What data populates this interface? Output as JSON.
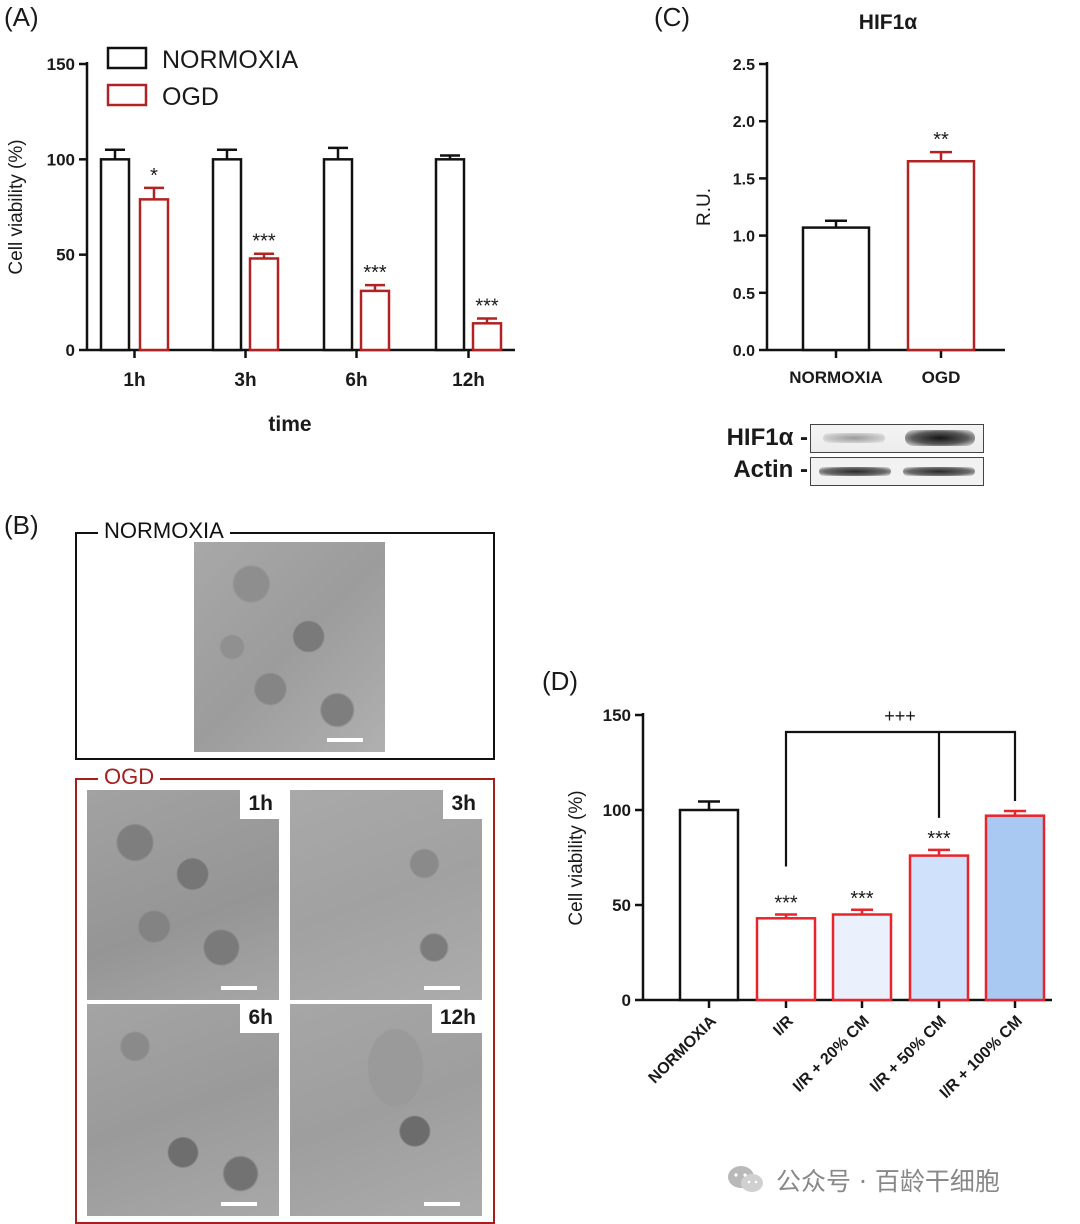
{
  "panel_labels": {
    "a": "(A)",
    "b": "(B)",
    "c": "(C)",
    "d": "(D)"
  },
  "colors": {
    "normoxia": "#111111",
    "ogd": "#b22222",
    "ir": "#e8252a",
    "cm20": "#eaf1fc",
    "cm50": "#d0e2fb",
    "cm100": "#a9c9f3"
  },
  "chart_data": [
    {
      "id": "A",
      "type": "bar",
      "categories": [
        "1h",
        "3h",
        "6h",
        "12h"
      ],
      "series": [
        {
          "name": "NORMOXIA",
          "values": [
            100,
            100,
            100,
            100
          ],
          "errors": [
            5,
            5,
            6,
            2
          ]
        },
        {
          "name": "OGD",
          "values": [
            79,
            48,
            31,
            14
          ],
          "errors": [
            6,
            2.5,
            3,
            2.5
          ],
          "annotations": [
            "*",
            "***",
            "***",
            "***"
          ]
        }
      ],
      "xlabel": "time",
      "ylabel": "Cell viability (%)",
      "ylim": [
        0,
        150
      ],
      "yticks": [
        "0",
        "50",
        "100",
        "150"
      ],
      "legend": "top-left"
    },
    {
      "id": "C",
      "type": "bar",
      "title": "HIF1α",
      "categories": [
        "NORMOXIA",
        "OGD"
      ],
      "values": [
        1.07,
        1.65
      ],
      "errors": [
        0.06,
        0.08
      ],
      "annotations": [
        "",
        "**"
      ],
      "ylabel": "R.U.",
      "ylim": [
        0,
        2.5
      ],
      "yticks": [
        "0.0",
        "0.5",
        "1.0",
        "1.5",
        "2.0",
        "2.5"
      ]
    },
    {
      "id": "D",
      "type": "bar",
      "categories": [
        "NORMOXIA",
        "I/R",
        "I/R + 20% CM",
        "I/R + 50% CM",
        "I/R + 100% CM"
      ],
      "values": [
        100,
        43,
        45,
        76,
        97
      ],
      "errors": [
        4.5,
        2,
        2.5,
        3,
        2.5
      ],
      "annotations": [
        "",
        "***",
        "***",
        "***",
        ""
      ],
      "bracket_label": "+++",
      "ylabel": "Cell viability (%)",
      "ylim": [
        0,
        150
      ],
      "yticks": [
        "0",
        "50",
        "100",
        "150"
      ]
    }
  ],
  "western_blot": {
    "rows": [
      "HIF1α -",
      "Actin -"
    ]
  },
  "micrographs": {
    "normoxia_title": "NORMOXIA",
    "ogd_title": "OGD",
    "ogd_tags": [
      "1h",
      "3h",
      "6h",
      "12h"
    ]
  },
  "watermark": {
    "text": "公众号 · 百龄干细胞"
  }
}
